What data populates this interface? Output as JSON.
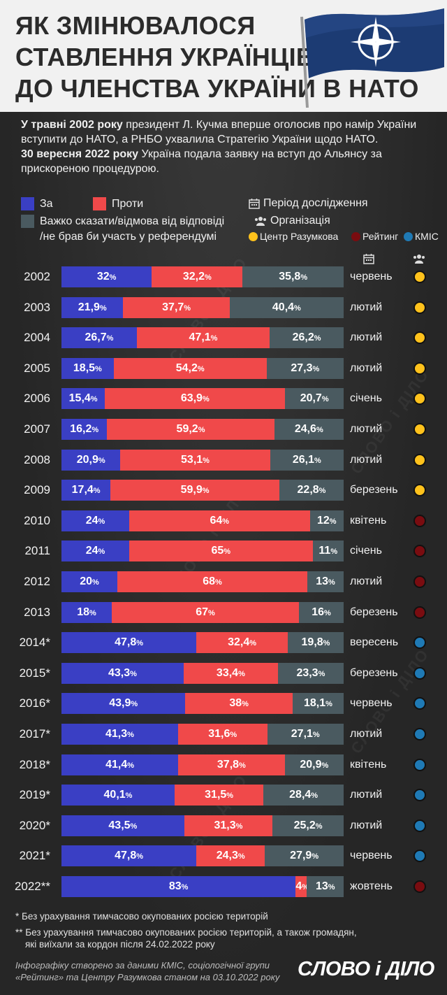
{
  "title_lines": [
    "ЯК ЗМІНЮВАЛОСЯ",
    "СТАВЛЕННЯ УКРАЇНЦІВ",
    "ДО ЧЛЕНСТВА УКРАЇНИ В НАТО"
  ],
  "intro": {
    "p1_bold": "У травні 2002 року",
    "p1_rest": " президент Л. Кучма вперше оголосив про намір України вступити до НАТО, а РНБО ухвалила Стратегію України щодо НАТО.",
    "p2_bold": "30 вересня 2022 року",
    "p2_rest": " Україна подала заявку на вступ до Альянсу за прискореною процедурою."
  },
  "legend": {
    "for": "За",
    "against": "Проти",
    "other_line1": "Важко сказати/відмова від відповіді",
    "other_line2": "/не брав би участь у референдумі",
    "period": "Період дослідження",
    "org": "Організація",
    "org_razumkov": "Центр Разумкова",
    "org_rating": "Рейтинг",
    "org_kmis": "КМІС"
  },
  "colors": {
    "for": "#3a3fc4",
    "against": "#f0494a",
    "other": "#4a5a60",
    "razumkov": "#ffc21c",
    "rating": "#7a0c10",
    "kmis": "#1f7ab5",
    "header_bg": "#f1f1f1"
  },
  "icons": {
    "period": "calendar-icon",
    "org": "people-icon",
    "flag": "nato-flag-icon"
  },
  "watermark": "СЛОВО і ДІЛО",
  "chart_data": {
    "type": "bar",
    "stacked": true,
    "orientation": "horizontal",
    "unit": "%",
    "categories": [
      "2002",
      "2003",
      "2004",
      "2005",
      "2006",
      "2007",
      "2008",
      "2009",
      "2010",
      "2011",
      "2012",
      "2013",
      "2014*",
      "2015*",
      "2016*",
      "2017*",
      "2018*",
      "2019*",
      "2020*",
      "2021*",
      "2022**"
    ],
    "series": [
      {
        "name": "За",
        "values": [
          32,
          21.9,
          26.7,
          18.5,
          15.4,
          16.2,
          20.9,
          17.4,
          24,
          24,
          20,
          18,
          47.8,
          43.3,
          43.9,
          41.3,
          41.4,
          40.1,
          43.5,
          47.8,
          83
        ]
      },
      {
        "name": "Проти",
        "values": [
          32.2,
          37.7,
          47.1,
          54.2,
          63.9,
          59.2,
          53.1,
          59.9,
          64,
          65,
          68,
          67,
          32.4,
          33.4,
          38,
          31.6,
          37.8,
          31.5,
          31.3,
          24.3,
          4
        ]
      },
      {
        "name": "Важко сказати/відмова від відповіді/не брав би участь у референдумі",
        "values": [
          35.8,
          40.4,
          26.2,
          27.3,
          20.7,
          24.6,
          26.1,
          22.8,
          12,
          11,
          13,
          16,
          19.8,
          23.3,
          18.1,
          27.1,
          20.9,
          28.4,
          25.2,
          27.9,
          13
        ]
      }
    ],
    "labels": [
      [
        "32",
        "32,2",
        "35,8"
      ],
      [
        "21,9",
        "37,7",
        "40,4"
      ],
      [
        "26,7",
        "47,1",
        "26,2"
      ],
      [
        "18,5",
        "54,2",
        "27,3"
      ],
      [
        "15,4",
        "63,9",
        "20,7"
      ],
      [
        "16,2",
        "59,2",
        "24,6"
      ],
      [
        "20,9",
        "53,1",
        "26,1"
      ],
      [
        "17,4",
        "59,9",
        "22,8"
      ],
      [
        "24",
        "64",
        "12"
      ],
      [
        "24",
        "65",
        "11"
      ],
      [
        "20",
        "68",
        "13"
      ],
      [
        "18",
        "67",
        "16"
      ],
      [
        "47,8",
        "32,4",
        "19,8"
      ],
      [
        "43,3",
        "33,4",
        "23,3"
      ],
      [
        "43,9",
        "38",
        "18,1"
      ],
      [
        "41,3",
        "31,6",
        "27,1"
      ],
      [
        "41,4",
        "37,8",
        "20,9"
      ],
      [
        "40,1",
        "31,5",
        "28,4"
      ],
      [
        "43,5",
        "31,3",
        "25,2"
      ],
      [
        "47,8",
        "24,3",
        "27,9"
      ],
      [
        "83",
        "4",
        "13"
      ]
    ],
    "months": [
      "червень",
      "лютий",
      "лютий",
      "лютий",
      "січень",
      "лютий",
      "лютий",
      "березень",
      "квітень",
      "січень",
      "лютий",
      "березень",
      "вересень",
      "березень",
      "червень",
      "лютий",
      "квітень",
      "лютий",
      "лютий",
      "червень",
      "жовтень"
    ],
    "orgs": [
      "razumkov",
      "razumkov",
      "razumkov",
      "razumkov",
      "razumkov",
      "razumkov",
      "razumkov",
      "razumkov",
      "rating",
      "rating",
      "rating",
      "rating",
      "kmis",
      "kmis",
      "kmis",
      "kmis",
      "kmis",
      "kmis",
      "kmis",
      "kmis",
      "rating"
    ]
  },
  "footnotes": {
    "f1": "* Без урахування тимчасово окупованих росією територій",
    "f2_line1": "** Без урахування тимчасово окупованих росією територій, а також громадян,",
    "f2_line2": "які виїхали за кордон після 24.02.2022 року"
  },
  "source_line1": "Інфографіку створено за даними КМІС, соціологічної групи",
  "source_line2": "«Рейтинг» та Центру Разумкова станом на 03.10.2022 року",
  "logo": "СЛОВО і ДІЛО"
}
